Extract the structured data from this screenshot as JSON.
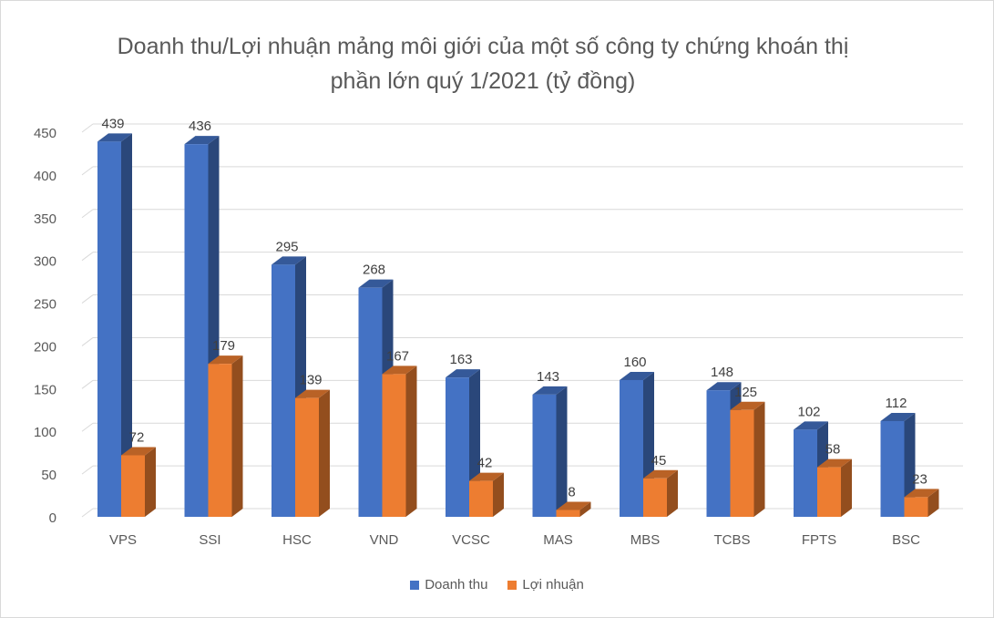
{
  "chart_data": {
    "type": "bar",
    "title_line1": "Doanh thu/Lợi nhuận mảng môi giới của một số công ty chứng khoán thị",
    "title_line2": "phần lớn quý 1/2021 (tỷ đồng)",
    "categories": [
      "VPS",
      "SSI",
      "HSC",
      "VND",
      "VCSC",
      "MAS",
      "MBS",
      "TCBS",
      "FPTS",
      "BSC"
    ],
    "series": [
      {
        "name": "Doanh thu",
        "values": [
          439,
          436,
          295,
          268,
          163,
          143,
          160,
          148,
          102,
          112
        ],
        "color": "#4472c4"
      },
      {
        "name": "Lợi nhuận",
        "values": [
          72,
          179,
          139,
          167,
          42,
          8,
          45,
          125,
          58,
          23
        ],
        "color": "#ed7d31"
      }
    ],
    "y_ticks": [
      0,
      50,
      100,
      150,
      200,
      250,
      300,
      350,
      400,
      450
    ],
    "ylim": [
      0,
      450
    ],
    "grid": true,
    "legend_position": "bottom"
  }
}
